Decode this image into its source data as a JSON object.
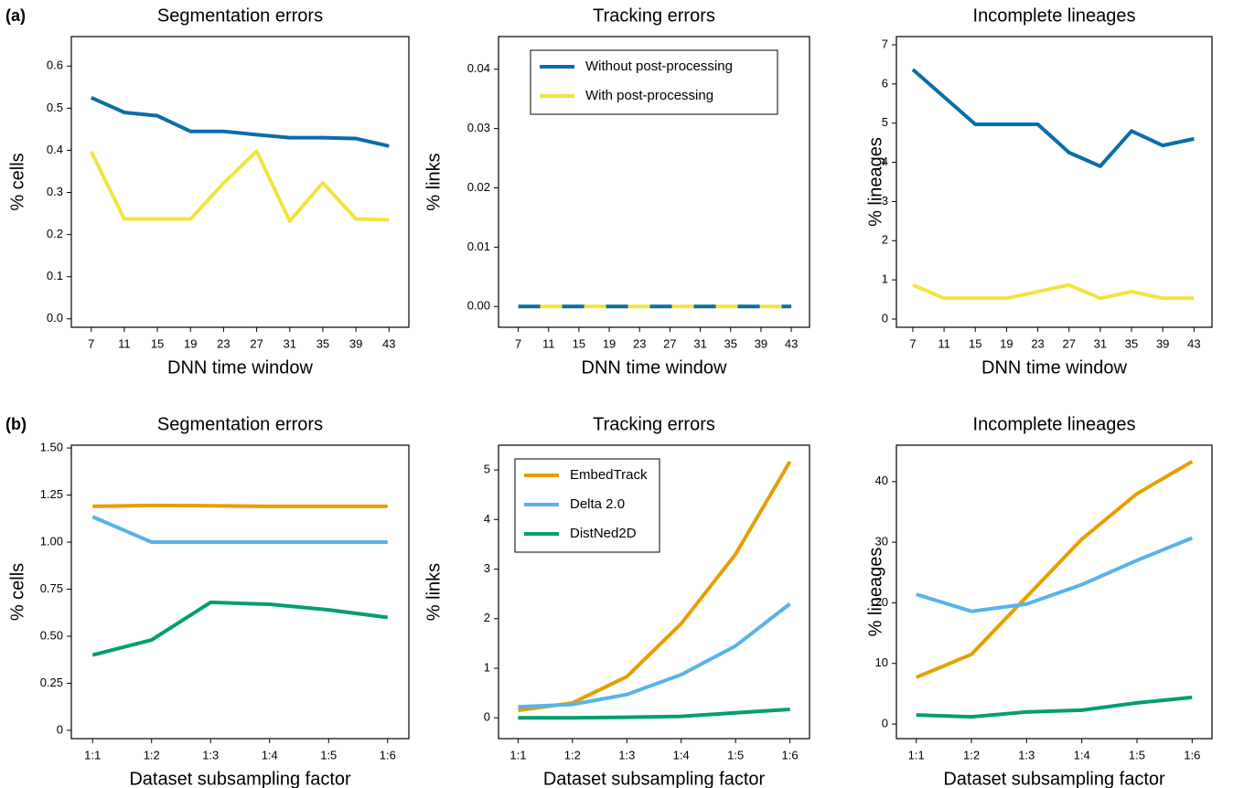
{
  "panel_labels": [
    "(a)",
    "(b)"
  ],
  "chart_data": [
    {
      "type": "line",
      "title": "Segmentation errors",
      "xlabel": "DNN time window",
      "ylabel": "% cells",
      "x": [
        7,
        11,
        15,
        19,
        23,
        27,
        31,
        35,
        39,
        43
      ],
      "xlim": [
        4.6,
        45.4
      ],
      "xticks": [
        7,
        11,
        15,
        19,
        23,
        27,
        31,
        35,
        39,
        43
      ],
      "ylim": [
        -0.02,
        0.67
      ],
      "yticks": [
        {
          "value": 0,
          "label": "0.0"
        },
        {
          "value": 0.1,
          "label": "0.1"
        },
        {
          "value": 0.2,
          "label": "0.2"
        },
        {
          "value": 0.3,
          "label": "0.3"
        },
        {
          "value": 0.4,
          "label": "0.4"
        },
        {
          "value": 0.5,
          "label": "0.5"
        },
        {
          "value": 0.6,
          "label": "0.6"
        }
      ],
      "series": [
        {
          "color": "#0a6ea8",
          "values": [
            0.525,
            0.49,
            0.482,
            0.445,
            0.445,
            0.437,
            0.43,
            0.43,
            0.428,
            0.41
          ]
        },
        {
          "color": "#f0e442",
          "values": [
            0.397,
            0.237,
            0.237,
            0.237,
            0.322,
            0.398,
            0.232,
            0.323,
            0.237,
            0.235
          ]
        }
      ]
    },
    {
      "type": "line",
      "title": "Tracking errors",
      "xlabel": "DNN time window",
      "ylabel": "% links",
      "x": [
        7,
        11,
        15,
        19,
        23,
        27,
        31,
        35,
        39,
        43
      ],
      "xlim": [
        4.4,
        45.4
      ],
      "xticks": [
        7,
        11,
        15,
        19,
        23,
        27,
        31,
        35,
        39,
        43
      ],
      "ylim": [
        -0.0035,
        0.0455
      ],
      "yticks": [
        {
          "value": 0,
          "label": "0.00"
        },
        {
          "value": 0.01,
          "label": "0.01"
        },
        {
          "value": 0.02,
          "label": "0.02"
        },
        {
          "value": 0.03,
          "label": "0.03"
        },
        {
          "value": 0.04,
          "label": "0.04"
        }
      ],
      "legend": "upper center",
      "series": [
        {
          "name": "Without post-processing",
          "color": "#0a6ea8",
          "linestyle": "dashed",
          "values": [
            0,
            0,
            0,
            0,
            0,
            0,
            0,
            0,
            0,
            0
          ]
        },
        {
          "name": "With post-processing",
          "color": "#f0e442",
          "values": [
            0,
            0,
            0,
            0,
            0,
            0,
            0,
            0,
            0,
            0
          ]
        }
      ]
    },
    {
      "type": "line",
      "title": "Incomplete lineages",
      "xlabel": "DNN time window",
      "ylabel": "% lineages",
      "x": [
        7,
        11,
        15,
        19,
        23,
        27,
        31,
        35,
        39,
        43
      ],
      "xlim": [
        4.9,
        45.3
      ],
      "xticks": [
        7,
        11,
        15,
        19,
        23,
        27,
        31,
        35,
        39,
        43
      ],
      "ylim": [
        -0.21,
        7.21
      ],
      "yticks": [
        0,
        1,
        2,
        3,
        4,
        5,
        6,
        7
      ],
      "series": [
        {
          "color": "#0a6ea8",
          "values": [
            6.37,
            5.67,
            4.97,
            4.97,
            4.97,
            4.25,
            3.9,
            4.8,
            4.43,
            4.6
          ]
        },
        {
          "color": "#f0e442",
          "values": [
            0.87,
            0.53,
            0.53,
            0.53,
            0.7,
            0.87,
            0.53,
            0.7,
            0.53,
            0.53
          ]
        }
      ]
    },
    {
      "type": "line",
      "title": "Segmentation errors",
      "xlabel": "Dataset subsampling factor",
      "ylabel": "% cells",
      "categories": [
        "1:1",
        "1:2",
        "1:3",
        "1:4",
        "1:5",
        "1:6"
      ],
      "ylim": [
        -0.044,
        1.515
      ],
      "yticks": [
        0,
        0.25,
        {
          "value": 0.5,
          "label": "0.50"
        },
        {
          "value": 0.75,
          "label": "0.75"
        },
        {
          "value": 1,
          "label": "1.00"
        },
        {
          "value": 1.25,
          "label": "1.25"
        },
        {
          "value": 1.5,
          "label": "1.50"
        }
      ],
      "series": [
        {
          "color": "#e69f00",
          "values": [
            1.19,
            1.195,
            1.193,
            1.19,
            1.19,
            1.19
          ]
        },
        {
          "color": "#56b4e9",
          "values": [
            1.135,
            1.0,
            1.0,
            1.0,
            1.0,
            1.0
          ]
        },
        {
          "color": "#009e73",
          "values": [
            0.4,
            0.48,
            0.68,
            0.67,
            0.64,
            0.6
          ]
        }
      ]
    },
    {
      "type": "line",
      "title": "Tracking errors",
      "xlabel": "Dataset subsampling factor",
      "ylabel": "% links",
      "categories": [
        "1:1",
        "1:2",
        "1:3",
        "1:4",
        "1:5",
        "1:6"
      ],
      "ylim": [
        -0.42,
        5.5
      ],
      "yticks": [
        0,
        1,
        2,
        3,
        4,
        5
      ],
      "legend": "upper left",
      "series": [
        {
          "name": "EmbedTrack",
          "color": "#e69f00",
          "values": [
            0.15,
            0.3,
            0.83,
            1.9,
            3.3,
            5.17
          ]
        },
        {
          "name": "Delta 2.0",
          "color": "#56b4e9",
          "values": [
            0.22,
            0.27,
            0.47,
            0.87,
            1.45,
            2.3
          ]
        },
        {
          "name": "DistNed2D",
          "color": "#009e73",
          "values": [
            0,
            0,
            0.01,
            0.03,
            0.1,
            0.17
          ]
        }
      ]
    },
    {
      "type": "line",
      "title": "Incomplete lineages",
      "xlabel": "Dataset subsampling factor",
      "ylabel": "% lineages",
      "categories": [
        "1:1",
        "1:2",
        "1:3",
        "1:4",
        "1:5",
        "1:6"
      ],
      "ylim": [
        -2.4,
        46
      ],
      "yticks": [
        0,
        10,
        20,
        30,
        40
      ],
      "series": [
        {
          "color": "#e69f00",
          "values": [
            7.7,
            11.5,
            21,
            30.5,
            38,
            43.3
          ]
        },
        {
          "color": "#56b4e9",
          "values": [
            21.4,
            18.6,
            19.8,
            23,
            27,
            30.7
          ]
        },
        {
          "color": "#009e73",
          "values": [
            1.5,
            1.2,
            2,
            2.3,
            3.5,
            4.4
          ]
        }
      ]
    }
  ]
}
